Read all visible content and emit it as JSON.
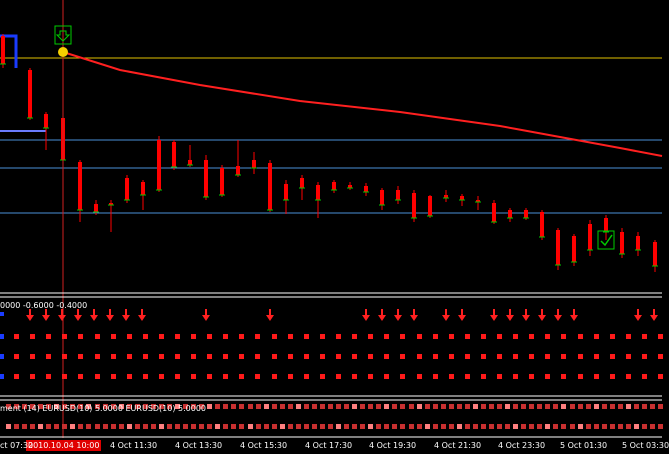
{
  "colors": {
    "background": "#000000",
    "bull": "#00cc00",
    "bear": "#ff0000",
    "ma": "#ff2020",
    "hline": "#4a90d9",
    "price_line": "#e0c000",
    "arrow": "#ff2020",
    "dot_red": "#ff1a1a",
    "dot_blue": "#1a3cff"
  },
  "icons": {
    "sell_signal": "down-arrow-icon",
    "buy_signal": "check-icon"
  },
  "indicator1": {
    "label": "0000 -0.6000 -0.4000"
  },
  "indicator2": {
    "label": "ment (14) EURUSD(10) 5.0000  EURUSD(10) 5.0000"
  },
  "time_axis": {
    "highlighted": "2010.10.04 10:00",
    "ticks": [
      "ct 07:30",
      "4 Oct 11:30",
      "4 Oct 13:30",
      "4 Oct 15:30",
      "4 Oct 17:30",
      "4 Oct 19:30",
      "4 Oct 21:30",
      "4 Oct 23:30",
      "5 Oct 01:30",
      "5 Oct 03:30"
    ]
  }
}
